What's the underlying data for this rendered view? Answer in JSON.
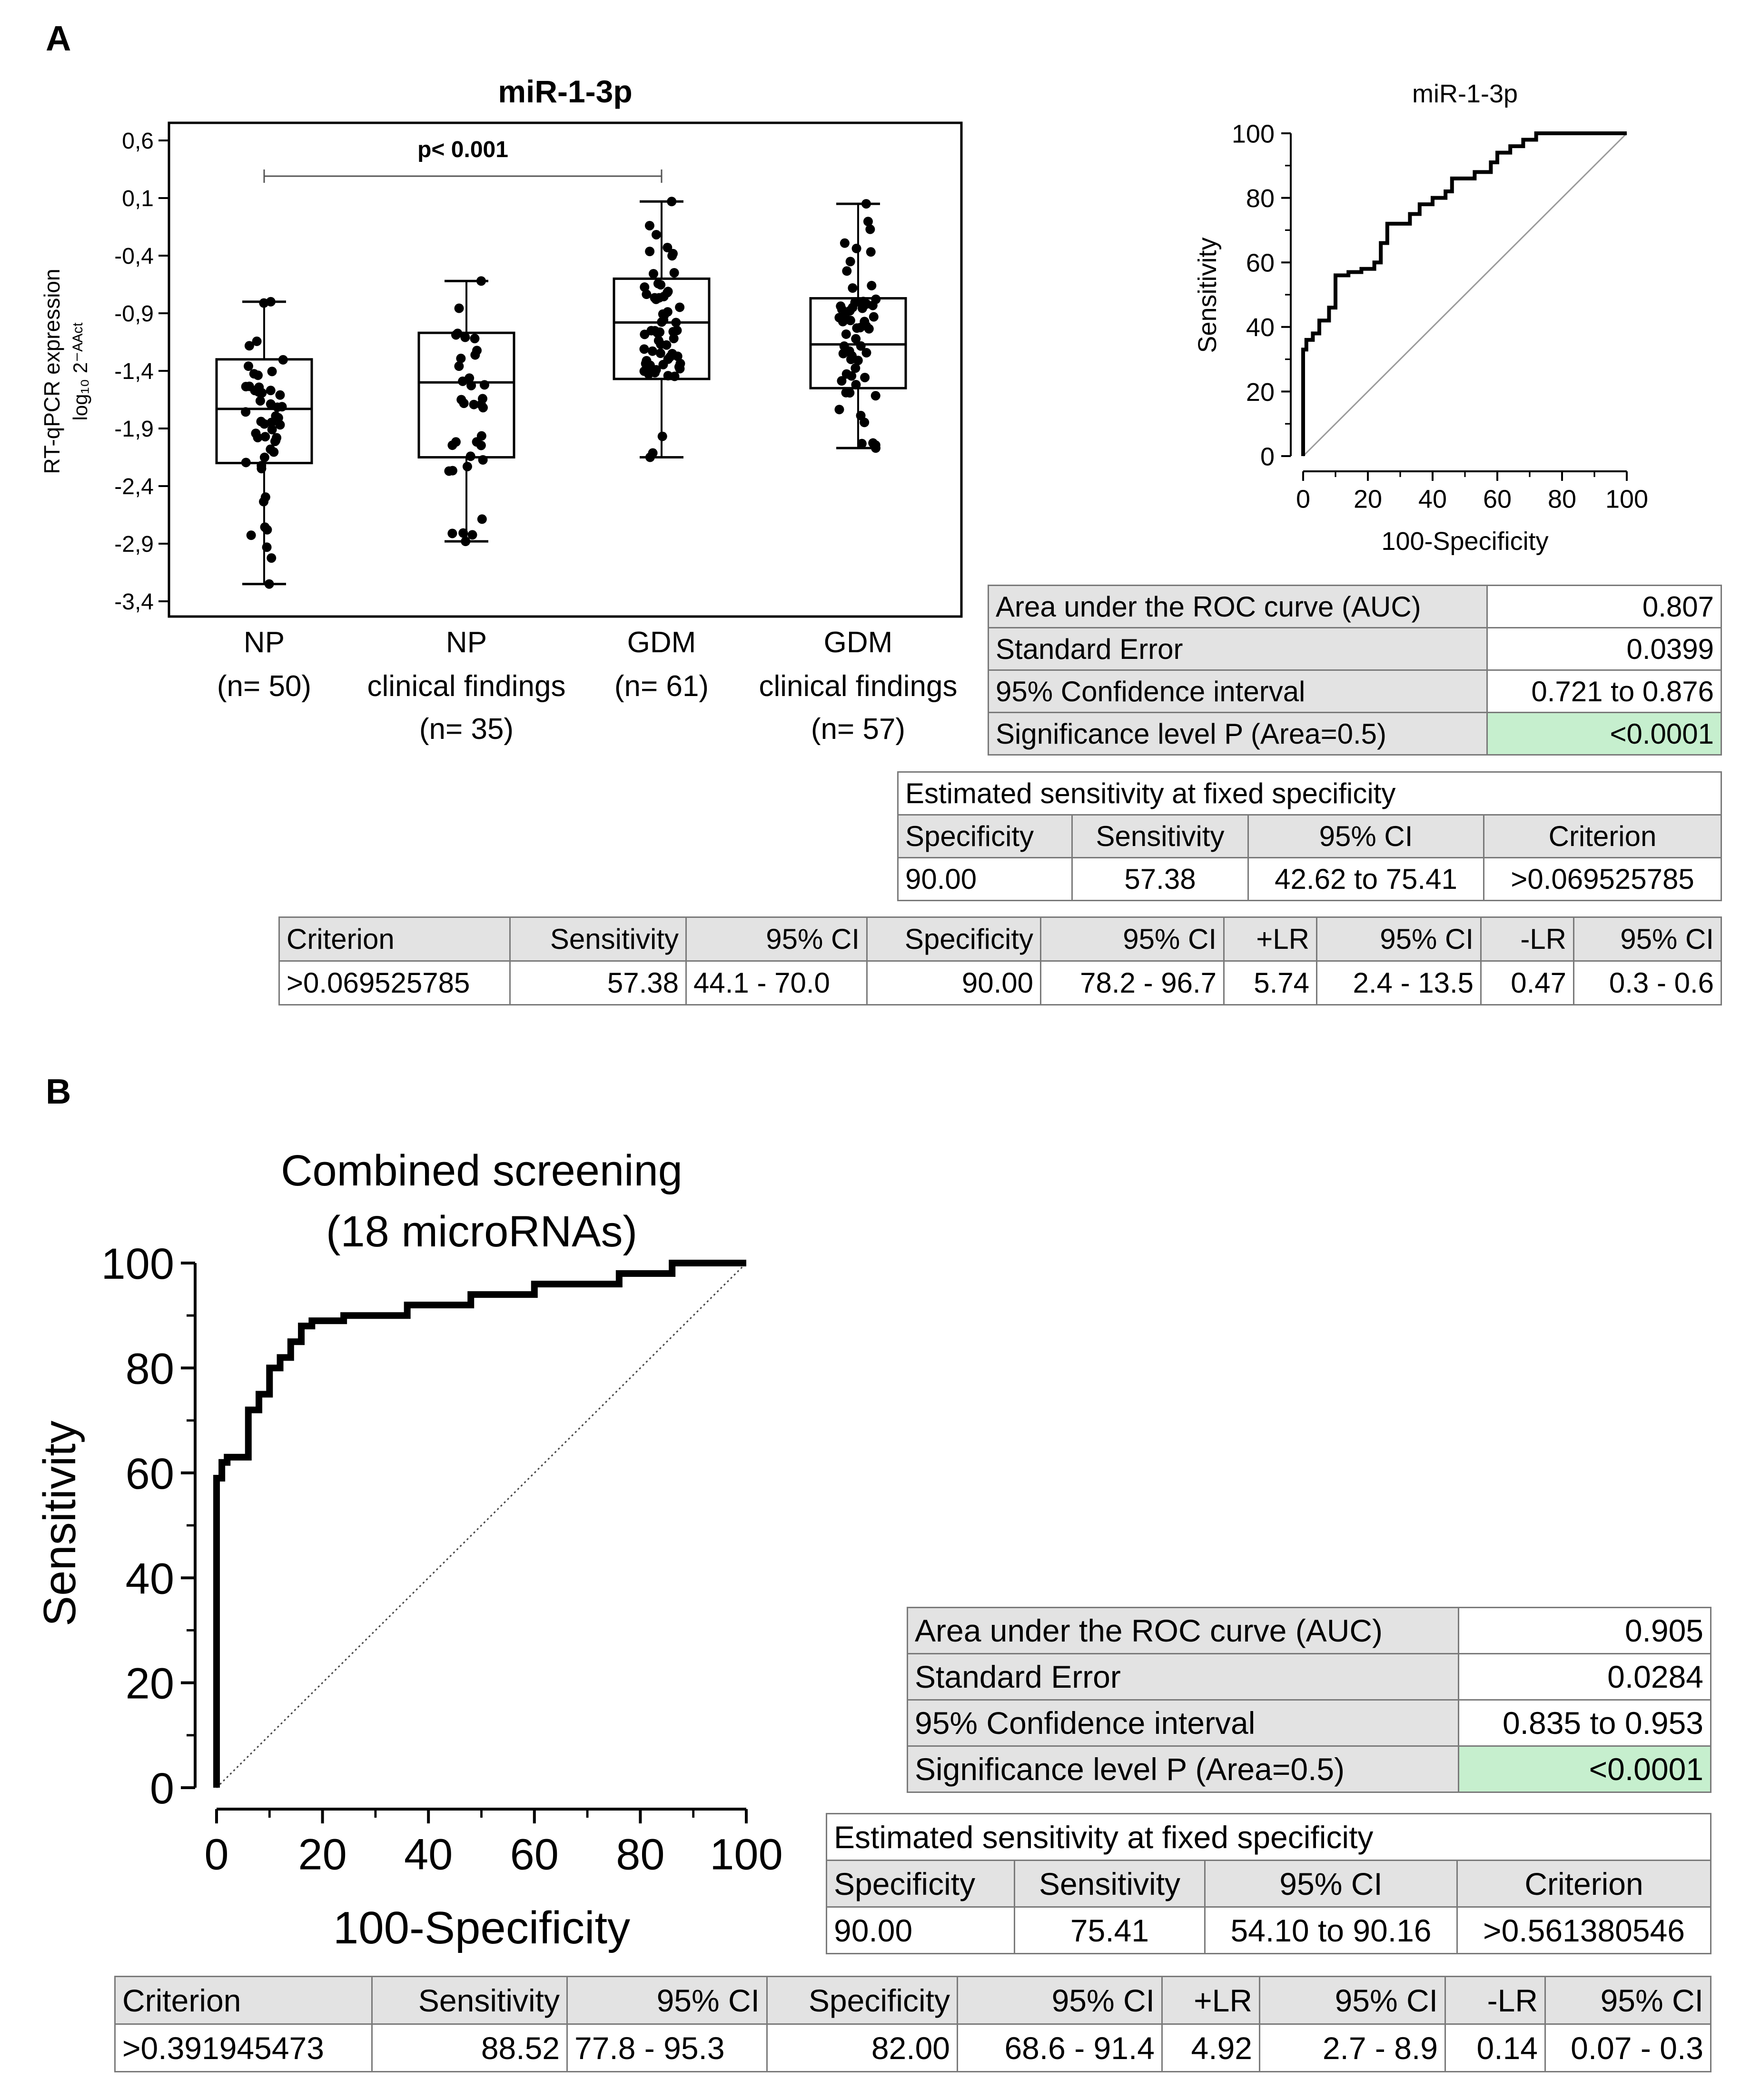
{
  "panel_a_label": "A",
  "panel_b_label": "B",
  "chart_data": [
    {
      "id": "boxplot_a",
      "type": "box",
      "title": "miR-1-3p",
      "ylabel_line1": "RT-qPCR expression",
      "ylabel_line2": "log₁₀ 2⁻ᴬᴬᶜᵗ",
      "ylim": [
        -3.4,
        0.6
      ],
      "yticks": [
        "0,6",
        "0,1",
        "-0,4",
        "-0,9",
        "-1,4",
        "-1,9",
        "-2,4",
        "-2,9",
        "-3,4"
      ],
      "ytick_values": [
        0.6,
        0.1,
        -0.4,
        -0.9,
        -1.4,
        -1.9,
        -2.4,
        -2.9,
        -3.4
      ],
      "annotation": "p< 0.001",
      "annotation_span": [
        0,
        2
      ],
      "groups": [
        {
          "label": "NP",
          "label2": "",
          "n": "(n= 50)",
          "min": -3.25,
          "q1": -2.2,
          "median": -1.73,
          "q3": -1.3,
          "max": -0.8
        },
        {
          "label": "NP",
          "label2": "clinical findings",
          "n": "(n= 35)",
          "min": -2.88,
          "q1": -2.15,
          "median": -1.5,
          "q3": -1.07,
          "max": -0.62
        },
        {
          "label": "GDM",
          "label2": "",
          "n": "(n= 61)",
          "min": -2.15,
          "q1": -1.47,
          "median": -0.98,
          "q3": -0.6,
          "max": 0.07
        },
        {
          "label": "GDM",
          "label2": "clinical findings",
          "n": "(n= 57)",
          "min": -2.07,
          "q1": -1.55,
          "median": -1.17,
          "q3": -0.77,
          "max": 0.05
        }
      ]
    },
    {
      "id": "roc_a",
      "type": "line",
      "title": "miR-1-3p",
      "xlabel": "100-Specificity",
      "ylabel": "Sensitivity",
      "xlim": [
        0,
        100
      ],
      "ylim": [
        0,
        100
      ],
      "xticks": [
        "0",
        "20",
        "40",
        "60",
        "80",
        "100"
      ],
      "yticks": [
        "0",
        "20",
        "40",
        "60",
        "80",
        "100"
      ],
      "series": [
        {
          "name": "ROC",
          "x": [
            0,
            0,
            1,
            1,
            3,
            3,
            5,
            5,
            8,
            8,
            10,
            10,
            14,
            14,
            18,
            18,
            22,
            22,
            24,
            24,
            26,
            26,
            33,
            33,
            36,
            36,
            40,
            40,
            44,
            44,
            46,
            46,
            53,
            53,
            58,
            58,
            60,
            60,
            64,
            64,
            68,
            68,
            72,
            72,
            100
          ],
          "y": [
            0,
            33,
            33,
            36,
            36,
            38,
            38,
            42,
            42,
            46,
            46,
            56,
            56,
            57,
            57,
            58,
            58,
            60,
            60,
            66,
            66,
            72,
            72,
            75,
            75,
            78,
            78,
            80,
            80,
            82,
            82,
            86,
            86,
            88,
            88,
            91,
            91,
            94,
            94,
            96,
            96,
            98,
            98,
            100,
            100
          ]
        },
        {
          "name": "Reference",
          "x": [
            0,
            100
          ],
          "y": [
            0,
            100
          ]
        }
      ]
    },
    {
      "id": "roc_b",
      "type": "line",
      "title_line1": "Combined screening",
      "title_line2": "(18 microRNAs)",
      "xlabel": "100-Specificity",
      "ylabel": "Sensitivity",
      "xlim": [
        0,
        100
      ],
      "ylim": [
        0,
        100
      ],
      "xticks": [
        "0",
        "20",
        "40",
        "60",
        "80",
        "100"
      ],
      "yticks": [
        "0",
        "20",
        "40",
        "60",
        "80",
        "100"
      ],
      "series": [
        {
          "name": "ROC",
          "x": [
            0,
            0,
            1,
            1,
            2,
            2,
            6,
            6,
            8,
            8,
            10,
            10,
            12,
            12,
            14,
            14,
            16,
            16,
            18,
            18,
            24,
            24,
            36,
            36,
            48,
            48,
            60,
            60,
            76,
            76,
            86,
            86,
            100
          ],
          "y": [
            0,
            59,
            59,
            62,
            62,
            63,
            63,
            72,
            72,
            75,
            75,
            80,
            80,
            82,
            82,
            85,
            85,
            88,
            88,
            89,
            89,
            90,
            90,
            92,
            92,
            94,
            94,
            96,
            96,
            98,
            98,
            100,
            100
          ]
        },
        {
          "name": "Reference",
          "x": [
            0,
            100
          ],
          "y": [
            0,
            100
          ]
        }
      ]
    }
  ],
  "tables": {
    "a_auc": {
      "rows": [
        [
          "Area under the ROC curve (AUC)",
          "0.807"
        ],
        [
          "Standard Error",
          "0.0399"
        ],
        [
          "95% Confidence interval",
          "0.721 to 0.876"
        ],
        [
          "Significance level P (Area=0.5)",
          "<0.0001"
        ]
      ]
    },
    "a_fixed": {
      "title": "Estimated sensitivity at fixed specificity",
      "headers": [
        "Specificity",
        "Sensitivity",
        "95% CI",
        "Criterion"
      ],
      "values": [
        "90.00",
        "57.38",
        "42.62 to 75.41",
        ">0.069525785"
      ]
    },
    "a_criterion": {
      "headers": [
        "Criterion",
        "Sensitivity",
        "95% CI",
        "Specificity",
        "95% CI",
        "+LR",
        "95% CI",
        "-LR",
        "95% CI"
      ],
      "values": [
        ">0.069525785",
        "57.38",
        "44.1 - 70.0",
        "90.00",
        "78.2 - 96.7",
        "5.74",
        "2.4 - 13.5",
        "0.47",
        "0.3 - 0.6"
      ]
    },
    "b_auc": {
      "rows": [
        [
          "Area under the ROC curve (AUC)",
          "0.905"
        ],
        [
          "Standard Error",
          "0.0284"
        ],
        [
          "95% Confidence interval",
          "0.835 to 0.953"
        ],
        [
          "Significance level P (Area=0.5)",
          "<0.0001"
        ]
      ]
    },
    "b_fixed": {
      "title": "Estimated sensitivity at fixed specificity",
      "headers": [
        "Specificity",
        "Sensitivity",
        "95% CI",
        "Criterion"
      ],
      "values": [
        "90.00",
        "75.41",
        "54.10 to 90.16",
        ">0.561380546"
      ]
    },
    "b_criterion": {
      "headers": [
        "Criterion",
        "Sensitivity",
        "95% CI",
        "Specificity",
        "95% CI",
        "+LR",
        "95% CI",
        "-LR",
        "95% CI"
      ],
      "values": [
        ">0.391945473",
        "88.52",
        "77.8 - 95.3",
        "82.00",
        "68.6 - 91.4",
        "4.92",
        "2.7 - 8.9",
        "0.14",
        "0.07 - 0.3"
      ]
    }
  }
}
